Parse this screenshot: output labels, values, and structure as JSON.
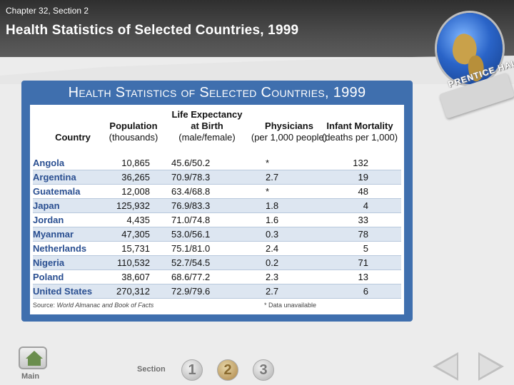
{
  "header": {
    "chapter": "Chapter 32, Section 2",
    "title": "Health Statistics of Selected Countries, 1999",
    "brand": "PRENTICE HALL"
  },
  "table": {
    "title": "Health Statistics of Selected Countries, 1999",
    "columns": {
      "country": {
        "line1": "Country"
      },
      "population": {
        "line1": "Population",
        "line2": "(thousands)"
      },
      "life": {
        "line1": "Life Expectancy",
        "line2": "at Birth",
        "line3": "(male/female)"
      },
      "physicians": {
        "line1": "Physicians",
        "line2": "(per 1,000 people)"
      },
      "infant": {
        "line1": "Infant Mortality",
        "line2": "(deaths per 1,000)"
      }
    },
    "rows": [
      {
        "country": "Angola",
        "population": "10,865",
        "life": "45.6/50.2",
        "physicians": "*",
        "infant": "132"
      },
      {
        "country": "Argentina",
        "population": "36,265",
        "life": "70.9/78.3",
        "physicians": "2.7",
        "infant": "19"
      },
      {
        "country": "Guatemala",
        "population": "12,008",
        "life": "63.4/68.8",
        "physicians": "*",
        "infant": "48"
      },
      {
        "country": "Japan",
        "population": "125,932",
        "life": "76.9/83.3",
        "physicians": "1.8",
        "infant": "4"
      },
      {
        "country": "Jordan",
        "population": "4,435",
        "life": "71.0/74.8",
        "physicians": "1.6",
        "infant": "33"
      },
      {
        "country": "Myanmar",
        "population": "47,305",
        "life": "53.0/56.1",
        "physicians": "0.3",
        "infant": "78"
      },
      {
        "country": "Netherlands",
        "population": "15,731",
        "life": "75.1/81.0",
        "physicians": "2.4",
        "infant": "5"
      },
      {
        "country": "Nigeria",
        "population": "110,532",
        "life": "52.7/54.5",
        "physicians": "0.2",
        "infant": "71"
      },
      {
        "country": "Poland",
        "population": "38,607",
        "life": "68.6/77.2",
        "physicians": "2.3",
        "infant": "13"
      },
      {
        "country": "United States",
        "population": "270,312",
        "life": "72.9/79.6",
        "physicians": "2.7",
        "infant": "6"
      }
    ],
    "source_prefix": "Source:",
    "source_title": "World Almanac and Book of Facts",
    "note": "* Data unavailable"
  },
  "nav": {
    "main_label": "Main",
    "section_label": "Section",
    "sections": [
      "1",
      "2",
      "3"
    ],
    "active_section": "2",
    "icons": {
      "main": "home-icon",
      "prev": "arrow-left-icon",
      "next": "arrow-right-icon"
    }
  },
  "colors": {
    "panel": "#3f6fae",
    "country_text": "#2a4f91",
    "alt_row": "#dde6f1",
    "active_section": "#b8955a"
  }
}
